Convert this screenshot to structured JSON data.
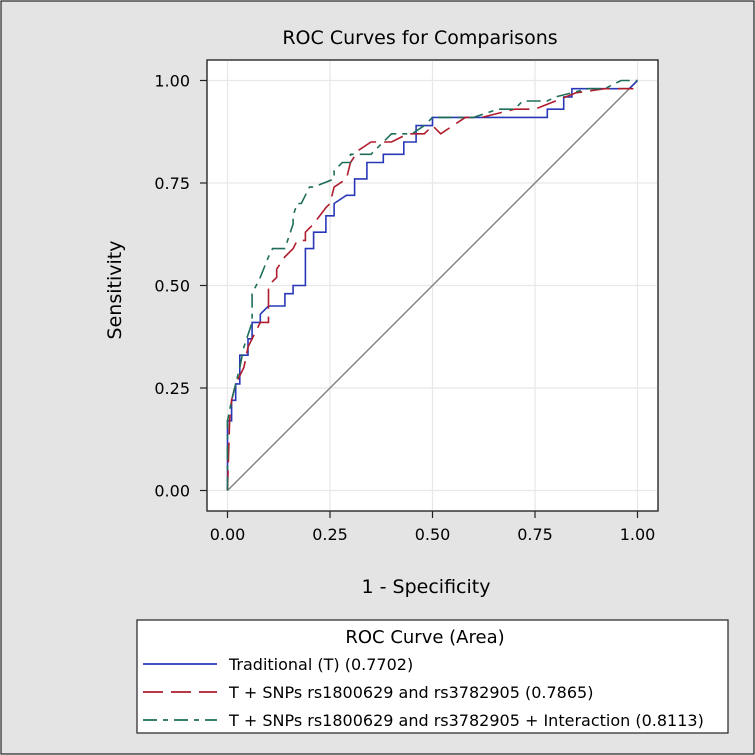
{
  "chart_data": {
    "type": "line",
    "title": "ROC Curves for Comparisons",
    "xlabel": "1 - Specificity",
    "ylabel": "Sensitivity",
    "xlim": [
      -0.05,
      1.05
    ],
    "ylim": [
      -0.05,
      1.05
    ],
    "xticks": [
      0.0,
      0.25,
      0.5,
      0.75,
      1.0
    ],
    "yticks": [
      0.0,
      0.25,
      0.5,
      0.75,
      1.0
    ],
    "xtick_labels": [
      "0.00",
      "0.25",
      "0.50",
      "0.75",
      "1.00"
    ],
    "ytick_labels": [
      "0.00",
      "0.25",
      "0.50",
      "0.75",
      "1.00"
    ],
    "grid": true,
    "legend": {
      "title": "ROC Curve (Area)",
      "placement": "bottom",
      "entries": [
        "Traditional (T)  (0.7702)",
        "T + SNPs rs1800629 and rs3782905  (0.7865)",
        "T + SNPs rs1800629 and rs3782905 + Interaction  (0.8113)"
      ]
    },
    "reference_line": {
      "x": [
        0,
        1
      ],
      "y": [
        0,
        1
      ],
      "color": "#808080"
    },
    "series": [
      {
        "name": "Traditional (T)",
        "area": 0.7702,
        "color": "#2838b8",
        "dash": "solid",
        "x": [
          0,
          0,
          0.01,
          0.01,
          0.02,
          0.02,
          0.03,
          0.03,
          0.05,
          0.05,
          0.06,
          0.06,
          0.08,
          0.08,
          0.1,
          0.14,
          0.14,
          0.16,
          0.16,
          0.19,
          0.19,
          0.21,
          0.21,
          0.24,
          0.24,
          0.26,
          0.26,
          0.29,
          0.31,
          0.31,
          0.34,
          0.34,
          0.38,
          0.38,
          0.43,
          0.43,
          0.46,
          0.46,
          0.5,
          0.5,
          0.52,
          0.78,
          0.78,
          0.82,
          0.82,
          0.84,
          0.84,
          0.98,
          1.0
        ],
        "y": [
          0,
          0.17,
          0.17,
          0.22,
          0.22,
          0.26,
          0.26,
          0.33,
          0.33,
          0.37,
          0.37,
          0.41,
          0.41,
          0.43,
          0.45,
          0.45,
          0.48,
          0.48,
          0.5,
          0.5,
          0.59,
          0.59,
          0.63,
          0.63,
          0.67,
          0.67,
          0.7,
          0.72,
          0.72,
          0.76,
          0.76,
          0.8,
          0.8,
          0.82,
          0.82,
          0.85,
          0.85,
          0.89,
          0.89,
          0.91,
          0.91,
          0.91,
          0.93,
          0.93,
          0.96,
          0.96,
          0.98,
          0.98,
          1.0
        ]
      },
      {
        "name": "T + SNPs rs1800629 and rs3782905",
        "area": 0.7865,
        "color": "#b01c2c",
        "dash": "long",
        "x": [
          0,
          0.005,
          0.01,
          0.02,
          0.04,
          0.05,
          0.07,
          0.08,
          0.1,
          0.1,
          0.12,
          0.12,
          0.14,
          0.16,
          0.17,
          0.19,
          0.19,
          0.21,
          0.24,
          0.25,
          0.26,
          0.29,
          0.3,
          0.32,
          0.35,
          0.38,
          0.4,
          0.44,
          0.47,
          0.48,
          0.5,
          0.52,
          0.55,
          0.58,
          0.62,
          0.7,
          0.75,
          0.8,
          0.85,
          0.92,
          0.99
        ],
        "y": [
          0,
          0.17,
          0.22,
          0.26,
          0.3,
          0.35,
          0.39,
          0.41,
          0.41,
          0.5,
          0.52,
          0.54,
          0.57,
          0.59,
          0.61,
          0.61,
          0.63,
          0.65,
          0.69,
          0.7,
          0.74,
          0.76,
          0.8,
          0.83,
          0.85,
          0.85,
          0.85,
          0.87,
          0.87,
          0.87,
          0.89,
          0.87,
          0.89,
          0.91,
          0.91,
          0.93,
          0.93,
          0.95,
          0.97,
          0.98,
          0.98
        ]
      },
      {
        "name": "T + SNPs rs1800629 and rs3782905 + Interaction",
        "area": 0.8113,
        "color": "#1e6e5a",
        "dash": "dashdot",
        "x": [
          0,
          0,
          0.01,
          0.02,
          0.03,
          0.04,
          0.06,
          0.06,
          0.07,
          0.08,
          0.1,
          0.11,
          0.12,
          0.13,
          0.14,
          0.16,
          0.16,
          0.17,
          0.18,
          0.2,
          0.21,
          0.26,
          0.26,
          0.28,
          0.3,
          0.3,
          0.32,
          0.35,
          0.38,
          0.4,
          0.45,
          0.48,
          0.5,
          0.55,
          0.6,
          0.66,
          0.7,
          0.72,
          0.78,
          0.8,
          0.88,
          0.92,
          0.96,
          1.0
        ],
        "y": [
          0,
          0.17,
          0.22,
          0.26,
          0.3,
          0.35,
          0.41,
          0.48,
          0.5,
          0.52,
          0.57,
          0.59,
          0.59,
          0.59,
          0.59,
          0.65,
          0.67,
          0.7,
          0.7,
          0.74,
          0.74,
          0.76,
          0.78,
          0.8,
          0.8,
          0.82,
          0.82,
          0.82,
          0.85,
          0.87,
          0.87,
          0.89,
          0.91,
          0.91,
          0.91,
          0.93,
          0.93,
          0.95,
          0.95,
          0.96,
          0.98,
          0.98,
          1.0,
          1.0
        ]
      }
    ]
  }
}
